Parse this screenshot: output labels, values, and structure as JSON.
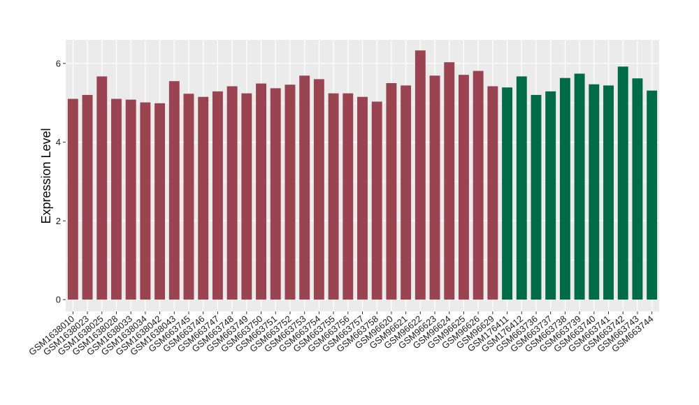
{
  "chart_data": {
    "type": "bar",
    "title": "",
    "xlabel": "",
    "ylabel": "Expression Level",
    "ylim": [
      -0.3,
      6.6
    ],
    "yticks": [
      0,
      2,
      4,
      6
    ],
    "grid": true,
    "legend": "none",
    "colors": {
      "group1": "#9A4452",
      "group2": "#006B47",
      "panel": "#EBEBEB",
      "grid": "#FFFFFF"
    },
    "categories": [
      "GSM1638010",
      "GSM1638023",
      "GSM1638025",
      "GSM1638028",
      "GSM1638033",
      "GSM1638034",
      "GSM1638042",
      "GSM1638043",
      "GSM663745",
      "GSM663746",
      "GSM663747",
      "GSM663748",
      "GSM663749",
      "GSM663750",
      "GSM663751",
      "GSM663752",
      "GSM663753",
      "GSM663754",
      "GSM663755",
      "GSM663756",
      "GSM663757",
      "GSM663758",
      "GSM96620",
      "GSM96621",
      "GSM96622",
      "GSM96623",
      "GSM96624",
      "GSM96625",
      "GSM96626",
      "GSM96629",
      "GSM176411",
      "GSM176412",
      "GSM663736",
      "GSM663737",
      "GSM663738",
      "GSM663739",
      "GSM663740",
      "GSM663741",
      "GSM663742",
      "GSM663743",
      "GSM663744"
    ],
    "values": [
      5.1,
      5.2,
      5.67,
      5.1,
      5.08,
      5.01,
      4.99,
      5.55,
      5.23,
      5.15,
      5.29,
      5.42,
      5.24,
      5.49,
      5.37,
      5.46,
      5.69,
      5.6,
      5.24,
      5.24,
      5.15,
      5.03,
      5.5,
      5.44,
      6.33,
      5.69,
      6.03,
      5.71,
      5.81,
      5.42,
      5.39,
      5.67,
      5.2,
      5.29,
      5.63,
      5.74,
      5.47,
      5.44,
      5.92,
      5.62,
      5.31
    ],
    "groups": [
      1,
      1,
      1,
      1,
      1,
      1,
      1,
      1,
      1,
      1,
      1,
      1,
      1,
      1,
      1,
      1,
      1,
      1,
      1,
      1,
      1,
      1,
      1,
      1,
      1,
      1,
      1,
      1,
      1,
      1,
      2,
      2,
      2,
      2,
      2,
      2,
      2,
      2,
      2,
      2,
      2
    ]
  }
}
